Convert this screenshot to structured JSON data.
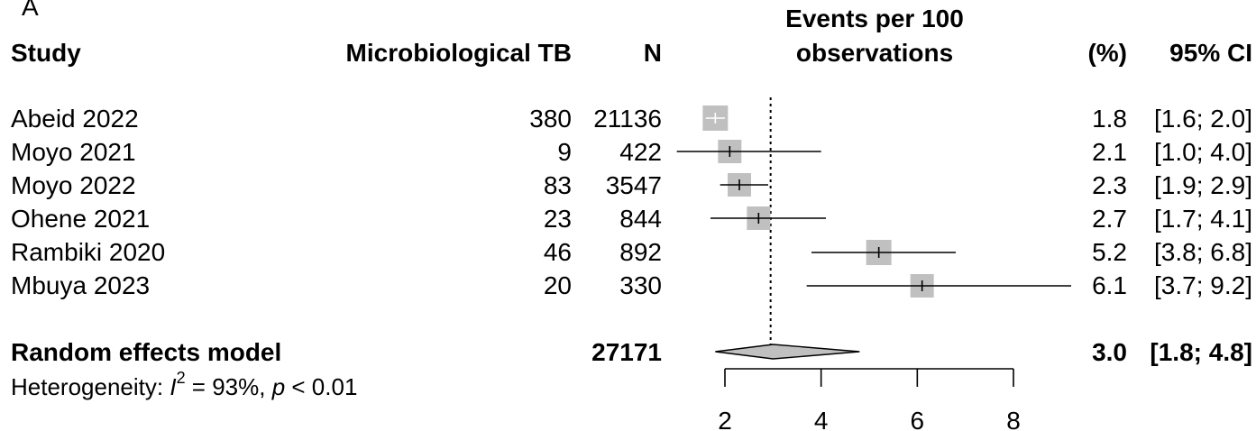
{
  "panel_label": "A",
  "headers": {
    "study": "Study",
    "events": "Microbiological TB",
    "n": "N",
    "effect_line1": "Events per 100",
    "effect_line2": "observations",
    "weight": "(%)",
    "ci": "95% CI"
  },
  "studies": [
    {
      "name": "Abeid 2022",
      "events": "380",
      "n": "21136",
      "est": "1.8",
      "ci": "[1.6; 2.0]"
    },
    {
      "name": "Moyo 2021",
      "events": "9",
      "n": "422",
      "est": "2.1",
      "ci": "[1.0; 4.0]"
    },
    {
      "name": "Moyo 2022",
      "events": "83",
      "n": "3547",
      "est": "2.3",
      "ci": "[1.9; 2.9]"
    },
    {
      "name": "Ohene 2021",
      "events": "23",
      "n": "844",
      "est": "2.7",
      "ci": "[1.7; 4.1]"
    },
    {
      "name": "Rambiki 2020",
      "events": "46",
      "n": "892",
      "est": "5.2",
      "ci": "[3.8; 6.8]"
    },
    {
      "name": "Mbuya 2023",
      "events": "20",
      "n": "330",
      "est": "6.1",
      "ci": "[3.7; 9.2]"
    }
  ],
  "summary": {
    "label": "Random effects model",
    "n": "27171",
    "est": "3.0",
    "ci": "[1.8; 4.8]"
  },
  "heterogeneity": {
    "prefix": "Heterogeneity: ",
    "i_letter": "I",
    "i_exp": "2",
    "i_value": " = 93%, ",
    "p_letter": "p",
    "p_value": " < 0.01"
  },
  "colors": {
    "box": "#c0c0c0",
    "diamond": "#c0c0c0",
    "line": "#000000"
  },
  "chart_data": {
    "type": "forest",
    "xlabel": "",
    "xlim": [
      2,
      8
    ],
    "xticks": [
      2,
      4,
      6,
      8
    ],
    "reference_line": 2.95,
    "studies": [
      {
        "name": "Abeid 2022",
        "est": 1.8,
        "lo": 1.6,
        "hi": 2.0
      },
      {
        "name": "Moyo 2021",
        "est": 2.1,
        "lo": 1.0,
        "hi": 4.0
      },
      {
        "name": "Moyo 2022",
        "est": 2.3,
        "lo": 1.9,
        "hi": 2.9
      },
      {
        "name": "Ohene 2021",
        "est": 2.7,
        "lo": 1.7,
        "hi": 4.1
      },
      {
        "name": "Rambiki 2020",
        "est": 5.2,
        "lo": 3.8,
        "hi": 6.8
      },
      {
        "name": "Mbuya 2023",
        "est": 6.1,
        "lo": 3.7,
        "hi": 9.2
      }
    ],
    "summary": {
      "est": 3.0,
      "lo": 1.8,
      "hi": 4.8
    }
  }
}
